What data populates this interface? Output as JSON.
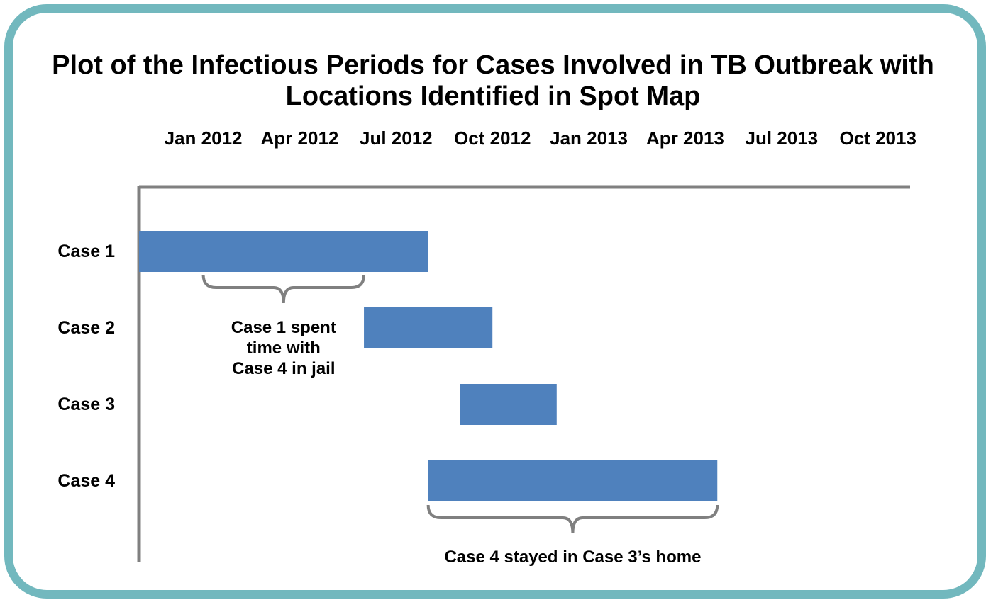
{
  "chart_data": {
    "type": "timeline",
    "title": "Plot of the Infectious Periods for Cases Involved in TB Outbreak with Locations Identified in Spot Map",
    "categories": [
      "Case 1",
      "Case 2",
      "Case 3",
      "Case 4"
    ],
    "series": [
      {
        "color": "#4f81bd",
        "start": [
          "2011-11",
          "2012-06",
          "2012-09",
          "2012-08"
        ],
        "end": [
          "2012-08",
          "2012-10",
          "2012-12",
          "2013-05"
        ]
      }
    ],
    "xlim": [
      "2011-11",
      "2013-11"
    ],
    "xticks": [
      {
        "value": "2012-01",
        "label": "Jan 2012"
      },
      {
        "value": "2012-04",
        "label": "Apr 2012"
      },
      {
        "value": "2012-07",
        "label": "Jul 2012"
      },
      {
        "value": "2012-10",
        "label": "Oct 2012"
      },
      {
        "value": "2013-01",
        "label": "Jan 2013"
      },
      {
        "value": "2013-04",
        "label": "Apr 2013"
      },
      {
        "value": "2013-07",
        "label": "Jul 2013"
      },
      {
        "value": "2013-10",
        "label": "Oct 2013"
      }
    ],
    "annotations": [
      {
        "text": "Case 1 spent time with Case 4 in jail",
        "start": "2012-01",
        "end": "2012-06"
      },
      {
        "text": "Case 4 stayed in Case 3’s home",
        "start": "2012-08",
        "end": "2013-05"
      }
    ]
  }
}
